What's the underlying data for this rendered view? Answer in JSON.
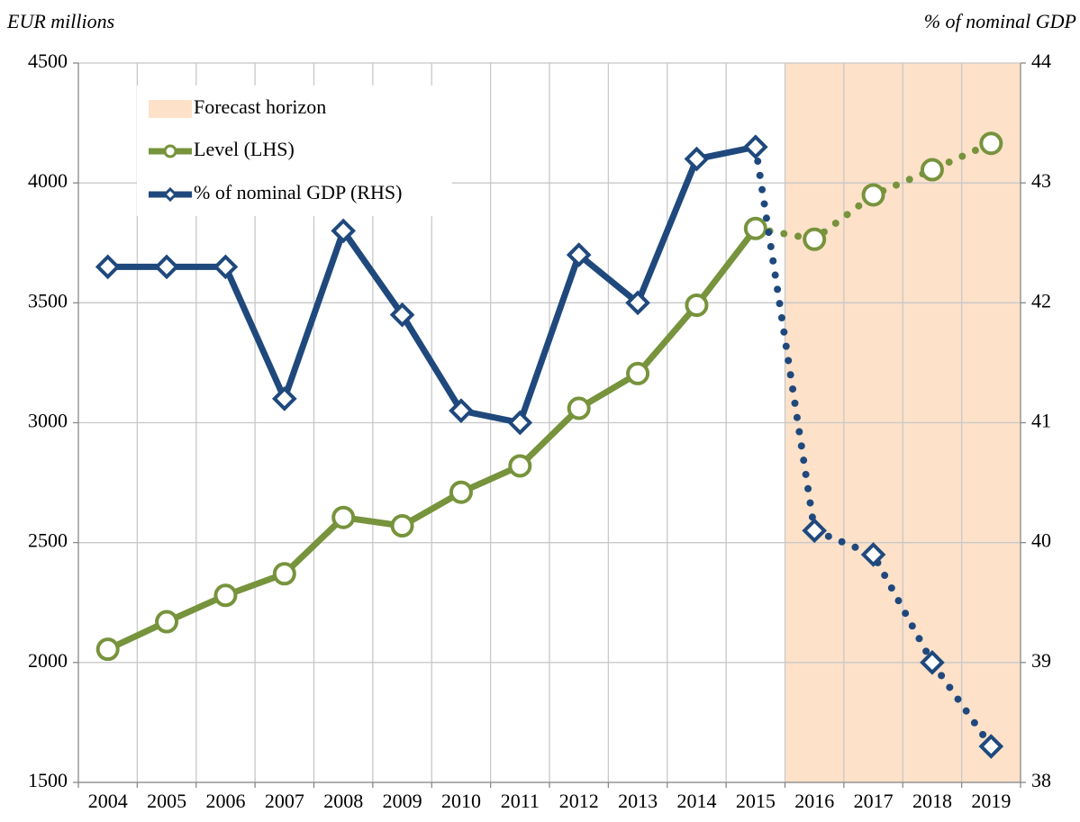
{
  "chart_data": {
    "type": "line",
    "y_label": "EUR millions",
    "y2_label": "% of nominal GDP",
    "categories": [
      "2004",
      "2005",
      "2006",
      "2007",
      "2008",
      "2009",
      "2010",
      "2011",
      "2012",
      "2013",
      "2014",
      "2015",
      "2016",
      "2017",
      "2018",
      "2019"
    ],
    "series": [
      {
        "name": "Level (LHS)",
        "color": "#77933c",
        "marker": "circle",
        "values": [
          2055,
          2170,
          2280,
          2370,
          2605,
          2570,
          2710,
          2820,
          3060,
          3205,
          3490,
          3810,
          3765,
          3950,
          4055,
          4165
        ]
      },
      {
        "name": "% of nominal GDP (RHS)",
        "color": "#1f497d",
        "marker": "diamond",
        "axis": "y2",
        "values": [
          42.3,
          42.3,
          42.3,
          41.2,
          42.6,
          41.9,
          41.1,
          41.0,
          42.4,
          42.0,
          43.2,
          43.3,
          40.1,
          39.9,
          39.0,
          38.3
        ]
      }
    ],
    "forecast": {
      "name": "Forecast horizon",
      "color": "#fde1c9",
      "start": "2016"
    },
    "ylim": [
      1500,
      4500
    ],
    "yticks": [
      1500,
      2000,
      2500,
      3000,
      3500,
      4000,
      4500
    ],
    "y2lim": [
      38,
      44
    ],
    "y2ticks": [
      38,
      39,
      40,
      41,
      42,
      43,
      44
    ],
    "grid": true,
    "legend": "upper left"
  }
}
